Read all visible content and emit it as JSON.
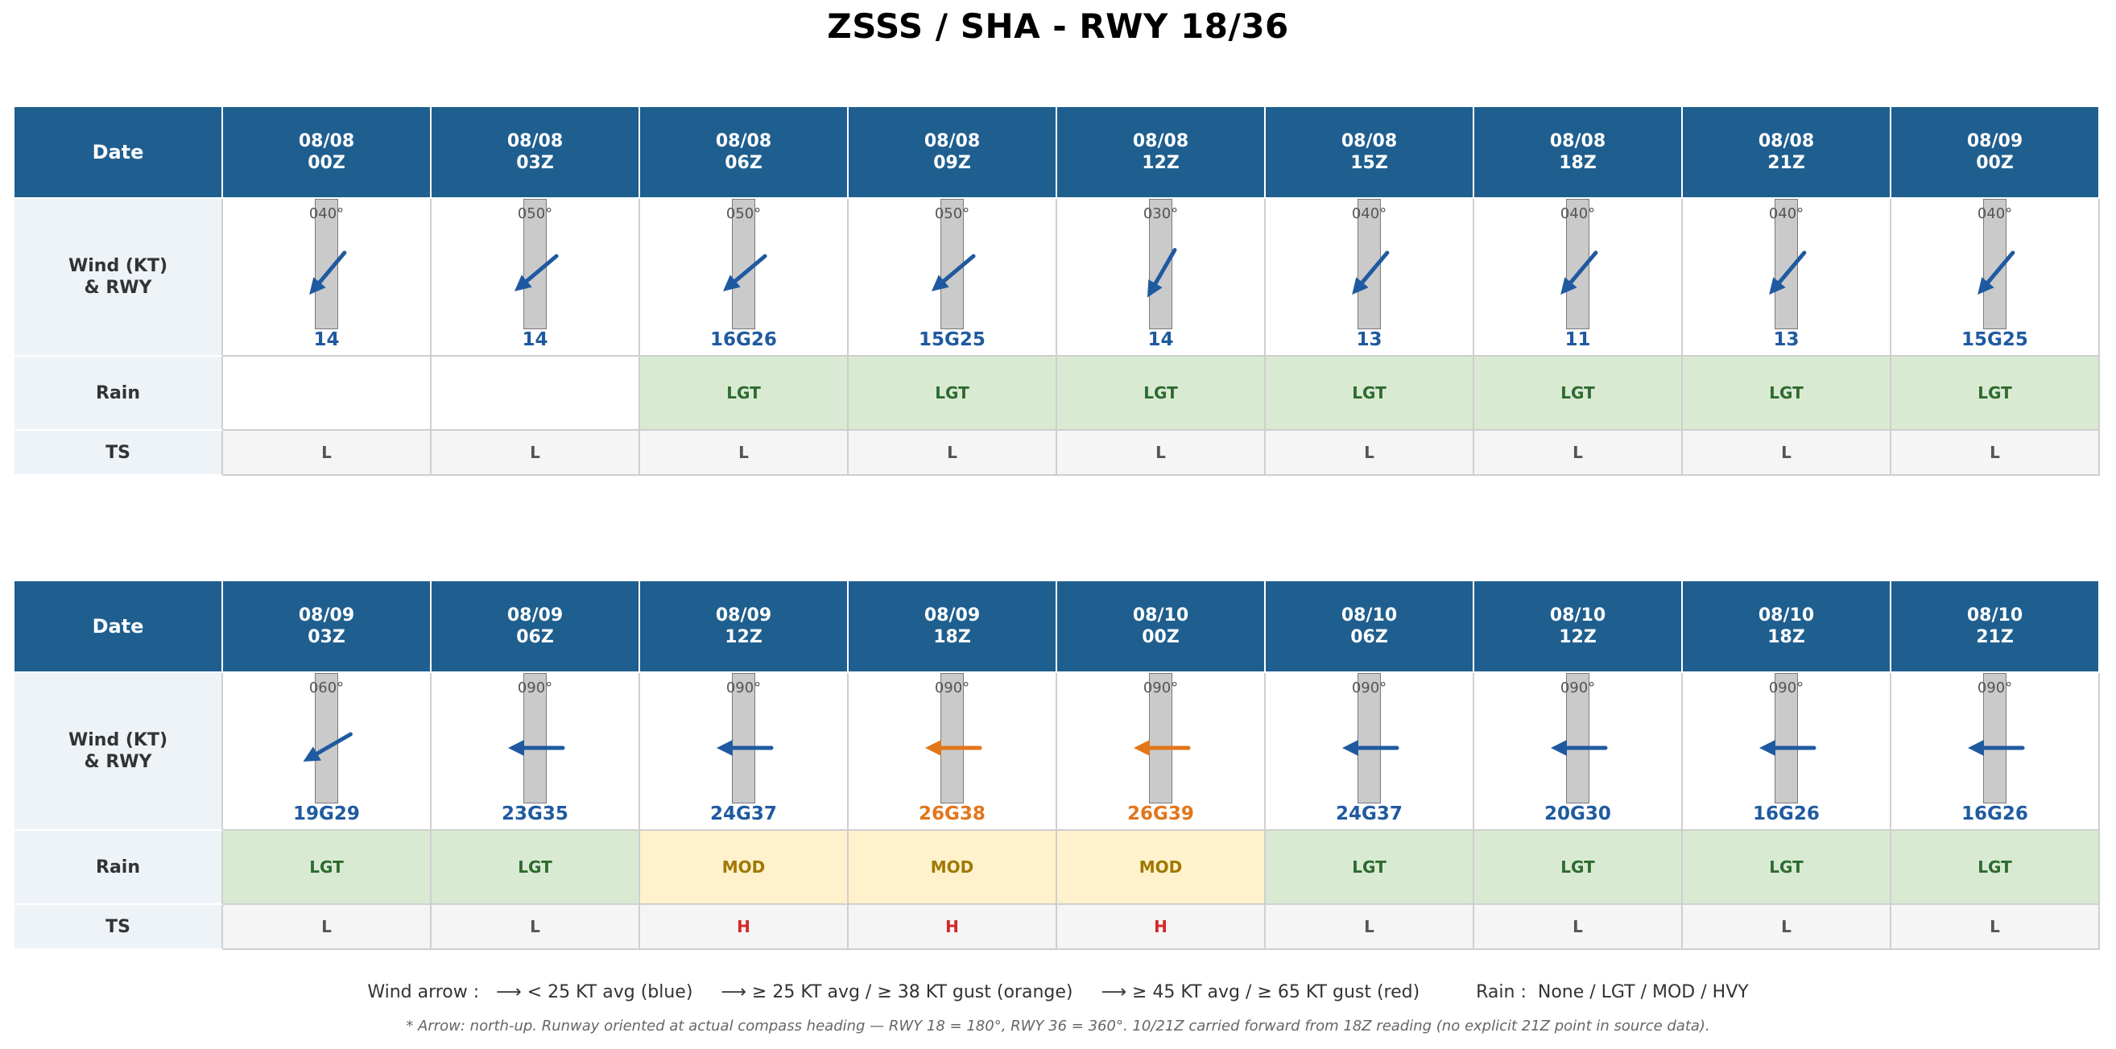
{
  "title": "ZSSS / SHA  -  RWY 18/36",
  "row_labels": {
    "date": "Date",
    "wind_line1": "Wind (KT)",
    "wind_line2": "& RWY",
    "rain": "Rain",
    "ts": "TS"
  },
  "legend_text": "Wind arrow :   ⟶ < 25 KT avg (blue)     ⟶ ≥ 25 KT avg / ≥ 38 KT gust (orange)     ⟶ ≥ 45 KT avg / ≥ 65 KT gust (red)          Rain :  None / LGT / MOD / HVY",
  "note_text": "* Arrow: north-up. Runway oriented at actual compass heading — RWY 18 = 180°, RWY 36 = 360°.  10/21Z carried forward from 18Z reading (no explicit 21Z point in source data).",
  "colors": {
    "header_bg": "#1f5f8f",
    "wind_blue": "#1f5aa0",
    "wind_orange": "#e2761b",
    "wind_red": "#d62728",
    "rain_lgt_bg": "#d9ead3",
    "rain_lgt_text": "#2e6b2e",
    "rain_mod_bg": "#fff1cc",
    "rain_mod_text": "#a07800",
    "ts_low_text": "#555555",
    "ts_high_text": "#d62728"
  },
  "chart_data": {
    "type": "table",
    "runway": "RWY 18/36",
    "runway_heading_deg": 180,
    "panels": [
      {
        "columns": [
          {
            "date": "08/08",
            "time": "00Z",
            "dir_label": "040°",
            "dir_deg": 40,
            "speed": "14",
            "category": "blue",
            "rain": "",
            "ts": "L"
          },
          {
            "date": "08/08",
            "time": "03Z",
            "dir_label": "050°",
            "dir_deg": 50,
            "speed": "14",
            "category": "blue",
            "rain": "",
            "ts": "L"
          },
          {
            "date": "08/08",
            "time": "06Z",
            "dir_label": "050°",
            "dir_deg": 50,
            "speed": "16G26",
            "category": "blue",
            "rain": "LGT",
            "ts": "L"
          },
          {
            "date": "08/08",
            "time": "09Z",
            "dir_label": "050°",
            "dir_deg": 50,
            "speed": "15G25",
            "category": "blue",
            "rain": "LGT",
            "ts": "L"
          },
          {
            "date": "08/08",
            "time": "12Z",
            "dir_label": "030°",
            "dir_deg": 30,
            "speed": "14",
            "category": "blue",
            "rain": "LGT",
            "ts": "L"
          },
          {
            "date": "08/08",
            "time": "15Z",
            "dir_label": "040°",
            "dir_deg": 40,
            "speed": "13",
            "category": "blue",
            "rain": "LGT",
            "ts": "L"
          },
          {
            "date": "08/08",
            "time": "18Z",
            "dir_label": "040°",
            "dir_deg": 40,
            "speed": "11",
            "category": "blue",
            "rain": "LGT",
            "ts": "L"
          },
          {
            "date": "08/08",
            "time": "21Z",
            "dir_label": "040°",
            "dir_deg": 40,
            "speed": "13",
            "category": "blue",
            "rain": "LGT",
            "ts": "L"
          },
          {
            "date": "08/09",
            "time": "00Z",
            "dir_label": "040°",
            "dir_deg": 40,
            "speed": "15G25",
            "category": "blue",
            "rain": "LGT",
            "ts": "L"
          }
        ]
      },
      {
        "columns": [
          {
            "date": "08/09",
            "time": "03Z",
            "dir_label": "060°",
            "dir_deg": 60,
            "speed": "19G29",
            "category": "blue",
            "rain": "LGT",
            "ts": "L"
          },
          {
            "date": "08/09",
            "time": "06Z",
            "dir_label": "090°",
            "dir_deg": 90,
            "speed": "23G35",
            "category": "blue",
            "rain": "LGT",
            "ts": "L"
          },
          {
            "date": "08/09",
            "time": "12Z",
            "dir_label": "090°",
            "dir_deg": 90,
            "speed": "24G37",
            "category": "blue",
            "rain": "MOD",
            "ts": "H"
          },
          {
            "date": "08/09",
            "time": "18Z",
            "dir_label": "090°",
            "dir_deg": 90,
            "speed": "26G38",
            "category": "orange",
            "rain": "MOD",
            "ts": "H"
          },
          {
            "date": "08/10",
            "time": "00Z",
            "dir_label": "090°",
            "dir_deg": 90,
            "speed": "26G39",
            "category": "orange",
            "rain": "MOD",
            "ts": "H"
          },
          {
            "date": "08/10",
            "time": "06Z",
            "dir_label": "090°",
            "dir_deg": 90,
            "speed": "24G37",
            "category": "blue",
            "rain": "LGT",
            "ts": "L"
          },
          {
            "date": "08/10",
            "time": "12Z",
            "dir_label": "090°",
            "dir_deg": 90,
            "speed": "20G30",
            "category": "blue",
            "rain": "LGT",
            "ts": "L"
          },
          {
            "date": "08/10",
            "time": "18Z",
            "dir_label": "090°",
            "dir_deg": 90,
            "speed": "16G26",
            "category": "blue",
            "rain": "LGT",
            "ts": "L"
          },
          {
            "date": "08/10",
            "time": "21Z",
            "dir_label": "090°",
            "dir_deg": 90,
            "speed": "16G26",
            "category": "blue",
            "rain": "LGT",
            "ts": "L"
          }
        ]
      }
    ]
  }
}
